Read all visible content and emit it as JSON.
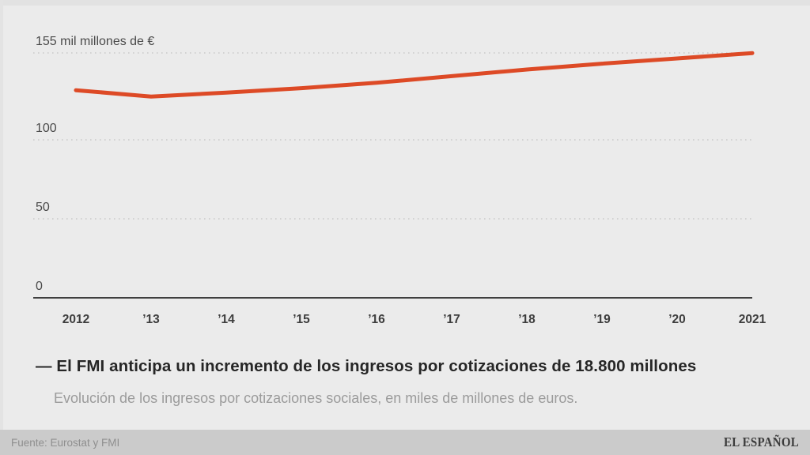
{
  "page": {
    "background": "#ebebeb",
    "footer_background": "#cbcbcb"
  },
  "chart_data": {
    "type": "line",
    "title": "— El FMI anticipa un incremento de los ingresos por cotizaciones de 18.800 millones",
    "subtitle": "Evolución de los ingresos por cotizaciones sociales, en miles de millones de euros.",
    "categories": [
      "2012",
      "’13",
      "’14",
      "’15",
      "’16",
      "’17",
      "’18",
      "’19",
      "’20",
      "2021"
    ],
    "values": [
      131.4,
      127.4,
      129.9,
      132.7,
      136.1,
      140.3,
      144.5,
      148.2,
      151.5,
      154.9
    ],
    "unit": "miles de millones de euros",
    "y_ticks": [
      {
        "value": 155,
        "label": "155 mil millones de €"
      },
      {
        "value": 100,
        "label": "100"
      },
      {
        "value": 50,
        "label": "50"
      },
      {
        "value": 0,
        "label": "0"
      }
    ],
    "ylim": [
      0,
      185
    ],
    "grid": "horizontal-dotted",
    "legend": "none",
    "line_color": "#dd4a26",
    "grid_color": "#c9c9c9",
    "axis_color": "#3f3f3f"
  },
  "footer": {
    "source": "Fuente: Eurostat y FMI",
    "brand": "EL ESPAÑOL"
  }
}
